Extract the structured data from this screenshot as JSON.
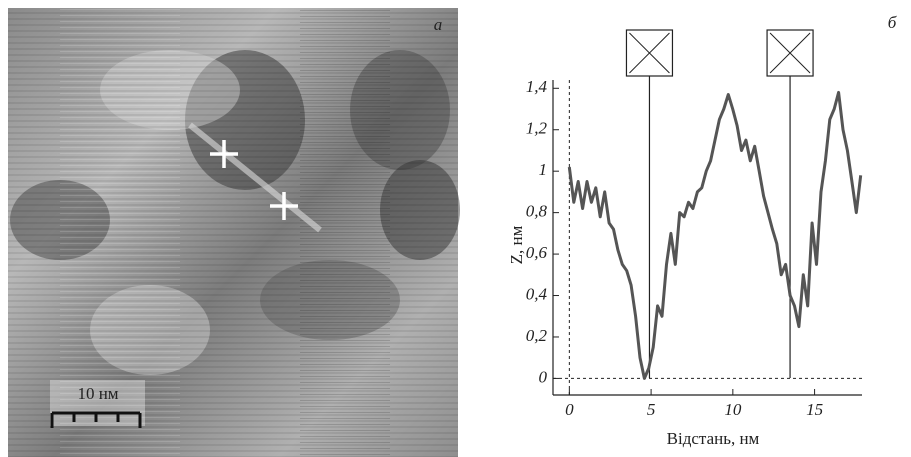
{
  "chart_data": {
    "type": "line",
    "image_panel_label": "а",
    "chart_panel_label": "б",
    "scale_bar_label": "10 нм",
    "xlabel": "Відстань, нм",
    "ylabel": "Z, нм",
    "x": [
      0,
      0.27,
      0.54,
      0.81,
      1.08,
      1.35,
      1.62,
      1.89,
      2.16,
      2.43,
      2.7,
      2.97,
      3.24,
      3.51,
      3.78,
      4.05,
      4.32,
      4.59,
      4.86,
      5.13,
      5.4,
      5.67,
      5.94,
      6.21,
      6.48,
      6.75,
      7.02,
      7.29,
      7.56,
      7.83,
      8.1,
      8.37,
      8.64,
      8.91,
      9.18,
      9.45,
      9.72,
      9.99,
      10.26,
      10.53,
      10.8,
      11.07,
      11.34,
      11.61,
      11.88,
      12.15,
      12.42,
      12.69,
      12.96,
      13.23,
      13.5,
      13.77,
      14.04,
      14.31,
      14.58,
      14.85,
      15.12,
      15.39,
      15.66,
      15.93,
      16.2,
      16.47,
      16.74,
      17.01,
      17.28,
      17.55,
      17.82
    ],
    "series": [
      {
        "color": "#555555",
        "values": [
          1.02,
          0.85,
          0.95,
          0.82,
          0.95,
          0.85,
          0.92,
          0.78,
          0.9,
          0.75,
          0.72,
          0.62,
          0.55,
          0.52,
          0.45,
          0.3,
          0.1,
          0.0,
          0.05,
          0.15,
          0.35,
          0.3,
          0.55,
          0.7,
          0.55,
          0.8,
          0.78,
          0.85,
          0.82,
          0.9,
          0.92,
          1.0,
          1.05,
          1.15,
          1.25,
          1.3,
          1.37,
          1.3,
          1.22,
          1.1,
          1.15,
          1.05,
          1.12,
          1.0,
          0.88,
          0.8,
          0.72,
          0.65,
          0.5,
          0.55,
          0.4,
          0.35,
          0.25,
          0.5,
          0.35,
          0.75,
          0.55,
          0.9,
          1.05,
          1.25,
          1.3,
          1.38,
          1.2,
          1.1,
          0.95,
          0.8,
          0.98
        ]
      }
    ],
    "markers": [
      4.9,
      13.5
    ],
    "xlim": [
      -1,
      17.9
    ],
    "ylim": [
      -0.08,
      1.44
    ],
    "xticks": [
      0,
      5,
      10,
      15
    ],
    "yticks": [
      0,
      {
        "value": 0.2,
        "label": "0,2"
      },
      {
        "value": 0.4,
        "label": "0,4"
      },
      {
        "value": 0.6,
        "label": "0,6"
      },
      {
        "value": 0.8,
        "label": "0,8"
      },
      1,
      {
        "value": 1.2,
        "label": "1,2"
      },
      {
        "value": 1.4,
        "label": "1,4"
      }
    ]
  }
}
